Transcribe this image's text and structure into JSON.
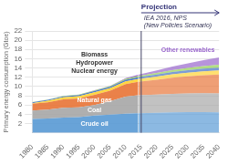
{
  "chart_data": {
    "type": "area",
    "stacked": true,
    "x": [
      1980,
      1985,
      1990,
      1995,
      2000,
      2005,
      2010,
      2014
    ],
    "x_projection": [
      2014,
      2020,
      2025,
      2030,
      2035,
      2040
    ],
    "series": [
      {
        "name": "Crude oil",
        "color": "#5b9bd5",
        "values": [
          3.0,
          3.1,
          3.3,
          3.4,
          3.7,
          3.9,
          4.1,
          4.2
        ],
        "projection_values": [
          4.2,
          4.3,
          4.4,
          4.45,
          4.45,
          4.4
        ]
      },
      {
        "name": "Coal",
        "color": "#a8a8a8",
        "values": [
          1.8,
          1.9,
          2.1,
          2.1,
          2.3,
          2.9,
          3.7,
          3.9
        ],
        "projection_values": [
          3.9,
          3.95,
          4.0,
          4.05,
          4.1,
          4.1
        ]
      },
      {
        "name": "Natural gas",
        "color": "#e8763a",
        "values": [
          1.5,
          1.6,
          1.8,
          1.9,
          2.2,
          2.3,
          2.7,
          2.9
        ],
        "projection_values": [
          2.9,
          3.2,
          3.5,
          3.7,
          3.9,
          4.1
        ]
      },
      {
        "name": "Nuclear energy",
        "color": "#ffd333",
        "values": [
          0.1,
          0.3,
          0.45,
          0.5,
          0.55,
          0.55,
          0.6,
          0.6
        ],
        "projection_values": [
          0.6,
          0.7,
          0.75,
          0.8,
          0.85,
          0.9
        ]
      },
      {
        "name": "Hydropower",
        "color": "#4472c4",
        "values": [
          0.18,
          0.2,
          0.22,
          0.25,
          0.27,
          0.3,
          0.35,
          0.38
        ],
        "projection_values": [
          0.38,
          0.43,
          0.47,
          0.51,
          0.55,
          0.58
        ]
      },
      {
        "name": "Biomass",
        "color": "#92d050",
        "values": [
          0.05,
          0.07,
          0.08,
          0.1,
          0.12,
          0.15,
          0.2,
          0.25
        ],
        "projection_values": [
          0.25,
          0.35,
          0.42,
          0.5,
          0.57,
          0.63
        ]
      },
      {
        "name": "Other renewables",
        "color": "#9966cc",
        "values": [
          0.01,
          0.01,
          0.02,
          0.02,
          0.03,
          0.05,
          0.15,
          0.3
        ],
        "projection_values": [
          0.3,
          0.55,
          0.75,
          1.0,
          1.25,
          1.55
        ]
      }
    ],
    "ylabel": "Primary energy consumption (Gtoe)",
    "ylim": [
      0,
      22
    ],
    "yticks": [
      2,
      4,
      6,
      8,
      10,
      12,
      14,
      16,
      18,
      20,
      22
    ],
    "xlim": [
      1980,
      2040
    ],
    "xticks": [
      1980,
      1985,
      1990,
      1995,
      2000,
      2005,
      2010,
      2015,
      2020,
      2025,
      2030,
      2035,
      2040
    ],
    "annotations": [
      {
        "x": 2015,
        "text": "Projection",
        "subtext": "IEA 2016, NPS\n(New Policies Scenario)"
      }
    ],
    "grid": true
  }
}
